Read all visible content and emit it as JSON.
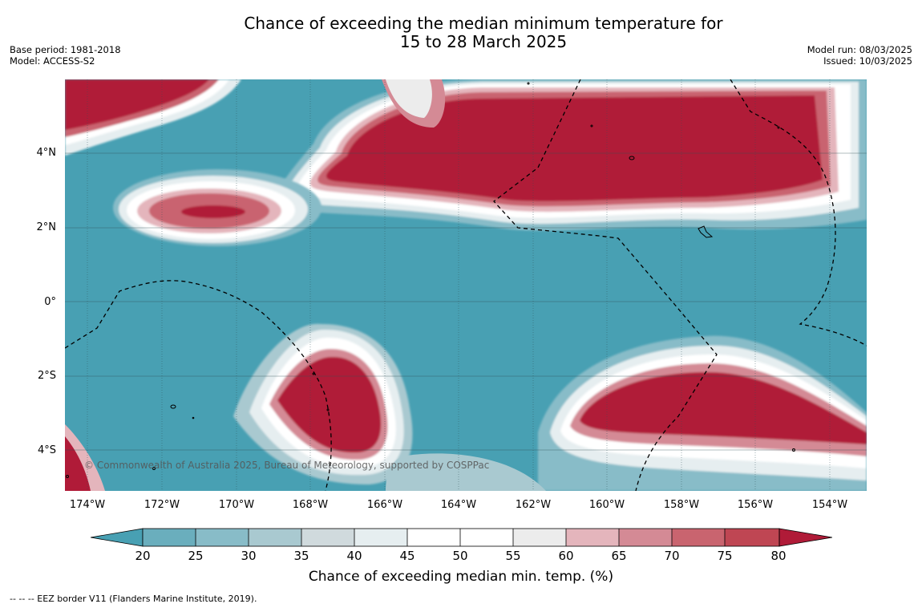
{
  "title_line1": "Chance of exceeding the median minimum temperature for",
  "title_line2": "15 to 28 March 2025",
  "meta_left": {
    "base_period": "Base period: 1981-2018",
    "model": "Model: ACCESS-S2"
  },
  "meta_right": {
    "model_run": "Model run: 08/03/2025",
    "issued": "Issued: 10/03/2025"
  },
  "copyright": "© Commonwealth of Australia 2025, Bureau of Meteorology, supported by COSPPac",
  "lat_labels": [
    "4°N",
    "2°N",
    "0°",
    "2°S",
    "4°S"
  ],
  "lon_labels": [
    "174°W",
    "172°W",
    "170°W",
    "168°W",
    "166°W",
    "164°W",
    "162°W",
    "160°W",
    "158°W",
    "156°W",
    "154°W"
  ],
  "colorbar": {
    "ticks": [
      "20",
      "25",
      "30",
      "35",
      "40",
      "45",
      "50",
      "55",
      "60",
      "65",
      "70",
      "75",
      "80"
    ],
    "label": "Chance of exceeding median min. temp. (%)",
    "colors": {
      "below_20": "#48a0b3",
      "20_25": "#6aaebd",
      "25_30": "#88bcc8",
      "30_35": "#a9c9d0",
      "35_40": "#d0dadd",
      "40_45": "#e6eef0",
      "45_55": "#ffffff",
      "55_60": "#ececec",
      "60_65": "#e4b5bc",
      "65_70": "#d48a95",
      "70_75": "#c9646f",
      "75_80": "#bf4653",
      "above_80": "#b01b38"
    }
  },
  "footer": "--  --  -- EEZ border V11 (Flanders Marine Institute, 2019)."
}
